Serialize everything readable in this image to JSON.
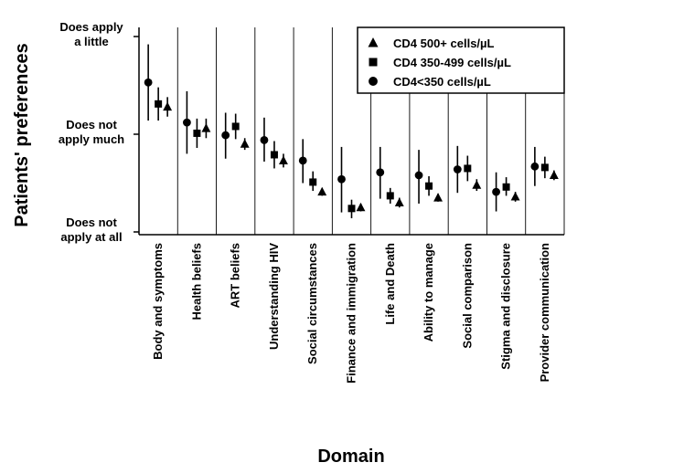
{
  "chart_data": {
    "type": "scatter",
    "subtype": "dot-with-error-bars",
    "ylabel": "Patients' preferences",
    "xlabel": "Domain",
    "yticks": [
      {
        "value": 0,
        "lines": [
          "Does not",
          "apply at all"
        ]
      },
      {
        "value": 1,
        "lines": [
          "Does not",
          "apply much"
        ]
      },
      {
        "value": 2,
        "lines": [
          "Does apply",
          "a little"
        ]
      }
    ],
    "ylim": [
      0,
      2
    ],
    "categories": [
      "Body and symptoms",
      "Health beliefs",
      "ART beliefs",
      "Understanding HIV",
      "Social circumstances",
      "Finance and immigration",
      "Life and Death",
      "Ability to manage",
      "Social comparison",
      "Stigma and disclosure",
      "Provider communication"
    ],
    "legend": {
      "position": "top-right",
      "entries": [
        {
          "label": "CD4 500+ cells/µL",
          "marker": "triangle"
        },
        {
          "label": "CD4 350-499 cells/µL",
          "marker": "square"
        },
        {
          "label": "CD4<350 cells/µL",
          "marker": "circle"
        }
      ]
    },
    "series": [
      {
        "name": "CD4<350 cells/µL",
        "marker": "circle",
        "values": [
          1.53,
          1.12,
          0.99,
          0.94,
          0.73,
          0.54,
          0.61,
          0.58,
          0.64,
          0.41,
          0.67
        ],
        "lower": [
          1.14,
          0.8,
          0.75,
          0.72,
          0.5,
          0.2,
          0.34,
          0.29,
          0.4,
          0.21,
          0.47
        ],
        "upper": [
          1.92,
          1.44,
          1.22,
          1.17,
          0.95,
          0.87,
          0.87,
          0.84,
          0.88,
          0.61,
          0.87
        ]
      },
      {
        "name": "CD4 350-499 cells/µL",
        "marker": "square",
        "values": [
          1.31,
          1.01,
          1.08,
          0.79,
          0.51,
          0.24,
          0.37,
          0.47,
          0.65,
          0.46,
          0.66
        ],
        "lower": [
          1.14,
          0.86,
          0.95,
          0.65,
          0.42,
          0.14,
          0.29,
          0.37,
          0.52,
          0.37,
          0.55
        ],
        "upper": [
          1.48,
          1.16,
          1.21,
          0.93,
          0.62,
          0.33,
          0.45,
          0.57,
          0.78,
          0.56,
          0.77
        ]
      },
      {
        "name": "CD4 500+ cells/µL",
        "marker": "triangle",
        "values": [
          1.28,
          1.06,
          0.9,
          0.73,
          0.41,
          0.25,
          0.3,
          0.35,
          0.48,
          0.36,
          0.58
        ],
        "lower": [
          1.18,
          0.96,
          0.84,
          0.66,
          0.37,
          0.21,
          0.25,
          0.31,
          0.42,
          0.31,
          0.53
        ],
        "upper": [
          1.38,
          1.16,
          0.96,
          0.8,
          0.45,
          0.29,
          0.35,
          0.39,
          0.54,
          0.41,
          0.63
        ]
      }
    ],
    "grid": false,
    "category_dividers": true
  }
}
